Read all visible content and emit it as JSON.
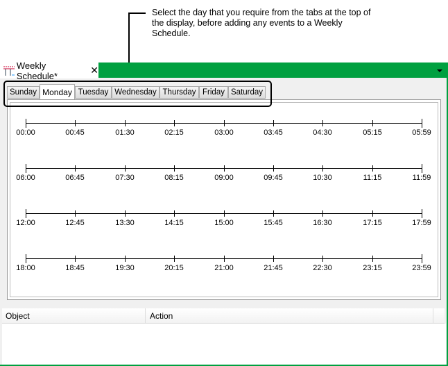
{
  "callout": {
    "text": "Select the day that you require from the tabs at the top of the display, before adding any events to a Weekly Schedule."
  },
  "document_tab": {
    "title": "Weekly Schedule*",
    "icon": "schedule-icon",
    "close_icon": "close-icon"
  },
  "header": {
    "dropdown_icon": "chevron-down-icon",
    "accent_color": "#00a040"
  },
  "day_tabs": [
    {
      "label": "Sunday"
    },
    {
      "label": "Monday",
      "active": true
    },
    {
      "label": "Tuesday"
    },
    {
      "label": "Wednesday"
    },
    {
      "label": "Thursday"
    },
    {
      "label": "Friday"
    },
    {
      "label": "Saturday"
    }
  ],
  "timelines": [
    {
      "labels": [
        "00:00",
        "00:45",
        "01:30",
        "02:15",
        "03:00",
        "03:45",
        "04:30",
        "05:15",
        "05:59"
      ]
    },
    {
      "labels": [
        "06:00",
        "06:45",
        "07:30",
        "08:15",
        "09:00",
        "09:45",
        "10:30",
        "11:15",
        "11:59"
      ]
    },
    {
      "labels": [
        "12:00",
        "12:45",
        "13:30",
        "14:15",
        "15:00",
        "15:45",
        "16:30",
        "17:15",
        "17:59"
      ]
    },
    {
      "labels": [
        "18:00",
        "18:45",
        "19:30",
        "20:15",
        "21:00",
        "21:45",
        "22:30",
        "23:15",
        "23:59"
      ]
    }
  ],
  "event_list": {
    "columns": [
      "Object",
      "Action"
    ]
  }
}
